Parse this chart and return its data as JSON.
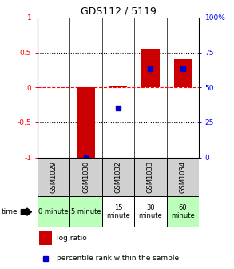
{
  "title": "GDS112 / 5119",
  "samples": [
    "GSM1029",
    "GSM1030",
    "GSM1032",
    "GSM1033",
    "GSM1034"
  ],
  "time_labels": [
    "0 minute",
    "5 minute",
    "15\nminute",
    "30\nminute",
    "60\nminute"
  ],
  "time_bg_colors": [
    "#bbffbb",
    "#bbffbb",
    "#ffffff",
    "#ffffff",
    "#bbffbb"
  ],
  "log_ratios": [
    0.0,
    -1.0,
    0.02,
    0.55,
    0.4
  ],
  "percentile_ranks": [
    null,
    0.0,
    35.0,
    63.0,
    63.0
  ],
  "bar_color": "#cc0000",
  "dot_color": "#0000cc",
  "ylim_left": [
    -1,
    1
  ],
  "ylim_right": [
    0,
    100
  ],
  "yticks_left": [
    -1,
    -0.5,
    0,
    0.5,
    1
  ],
  "yticks_right": [
    0,
    25,
    50,
    75,
    100
  ],
  "hlines_dotted": [
    -0.5,
    0.5
  ],
  "hline_dashed": 0,
  "legend_log": "log ratio",
  "legend_pct": "percentile rank within the sample",
  "time_label": "time",
  "sample_bg": "#d0d0d0",
  "bar_width": 0.55
}
